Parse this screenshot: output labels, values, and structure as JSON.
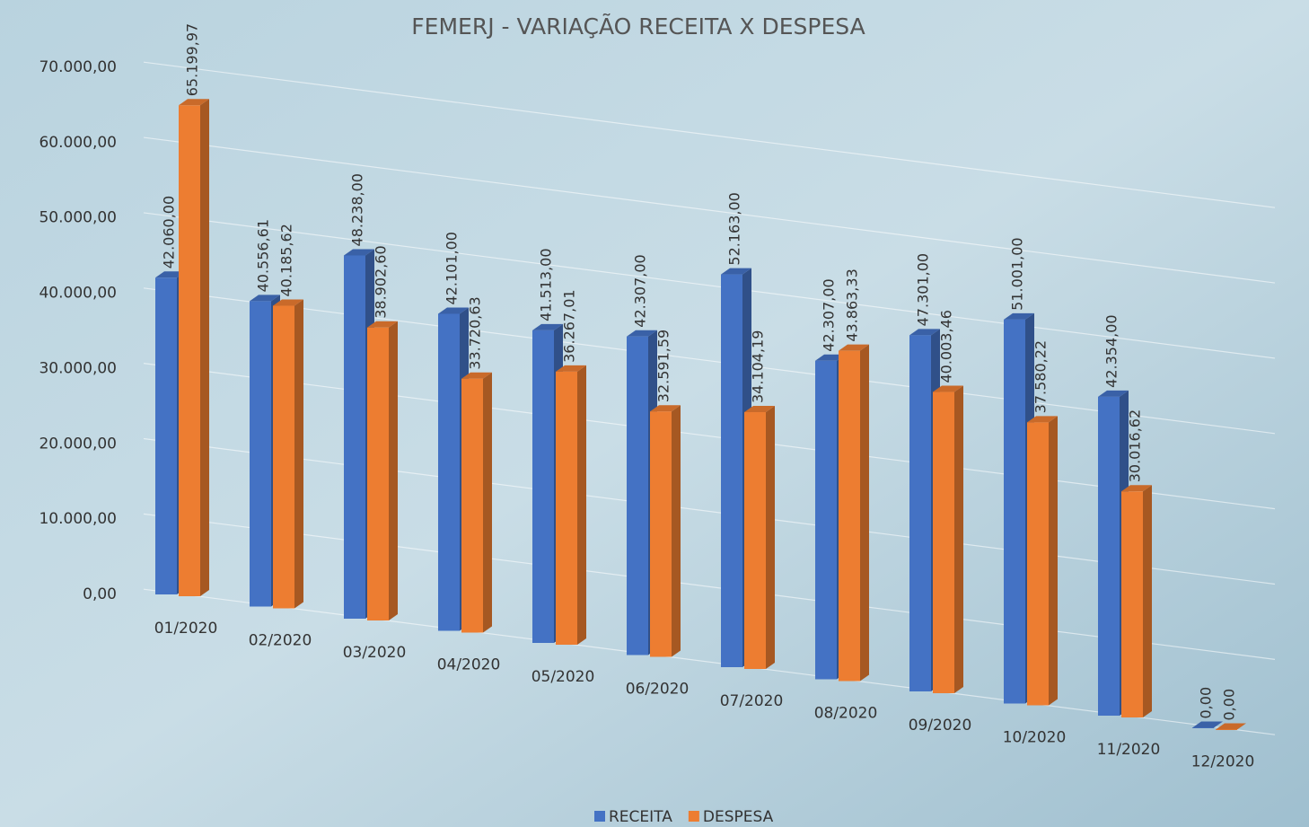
{
  "chart_data": {
    "type": "bar3d",
    "title": "FEMERJ - VARIAÇÃO RECEITA X DESPESA",
    "categories": [
      "01/2020",
      "02/2020",
      "03/2020",
      "04/2020",
      "05/2020",
      "06/2020",
      "07/2020",
      "08/2020",
      "09/2020",
      "10/2020",
      "11/2020",
      "12/2020"
    ],
    "series": [
      {
        "name": "RECEITA",
        "color": "#4472c4",
        "values": [
          42060,
          40556.61,
          48238,
          42101,
          41513,
          42307,
          52163,
          42307,
          47301,
          51001,
          42354,
          0
        ],
        "value_labels": [
          "42.060,00",
          "40.556,61",
          "48.238,00",
          "42.101,00",
          "41.513,00",
          "42.307,00",
          "52.163,00",
          "42.307,00",
          "47.301,00",
          "51.001,00",
          "42.354,00",
          "0,00"
        ]
      },
      {
        "name": "DESPESA",
        "color": "#ed7d31",
        "values": [
          65199.97,
          40185.62,
          38902.6,
          33720.63,
          36267.01,
          32591.59,
          34104.19,
          43863.33,
          40003.46,
          37580.22,
          30016.62,
          0
        ],
        "value_labels": [
          "65.199,97",
          "40.185,62",
          "38.902,60",
          "33.720,63",
          "36.267,01",
          "32.591,59",
          "34.104,19",
          "43.863,33",
          "40.003,46",
          "37.580,22",
          "30.016,62",
          "0,00"
        ]
      }
    ],
    "ylim": [
      0,
      70000
    ],
    "yticks": [
      {
        "value": 0,
        "label": "0,00"
      },
      {
        "value": 10000,
        "label": "10.000,00"
      },
      {
        "value": 20000,
        "label": "20.000,00"
      },
      {
        "value": 30000,
        "label": "30.000,00"
      },
      {
        "value": 40000,
        "label": "40.000,00"
      },
      {
        "value": 50000,
        "label": "50.000,00"
      },
      {
        "value": 60000,
        "label": "60.000,00"
      },
      {
        "value": 70000,
        "label": "70.000,00"
      }
    ],
    "grid": true,
    "legend": "bottom"
  }
}
